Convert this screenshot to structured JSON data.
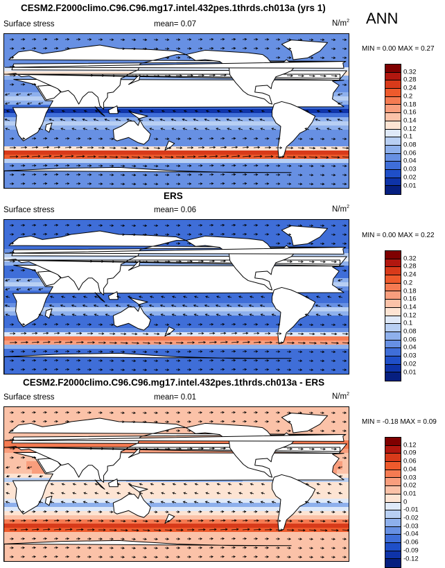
{
  "season": "ANN",
  "panels": [
    {
      "title": "CESM2.F2000climo.C96.C96.mg17.intel.432pes.1thrds.ch013a (yrs 1)",
      "variable": "Surface stress",
      "mean_label": "mean=",
      "mean_value": "0.07",
      "units": "N/m",
      "units_sup": "2",
      "min_label": "MIN =",
      "min_value": "0.00",
      "max_label": "MAX =",
      "max_value": "0.27",
      "colorbar_ticks": [
        "0.32",
        "0.28",
        "0.24",
        "0.2",
        "0.18",
        "0.16",
        "0.14",
        "0.12",
        "0.1",
        "0.08",
        "0.06",
        "0.04",
        "0.03",
        "0.02",
        "0.01"
      ],
      "colorbar_colors": [
        "#7f0000",
        "#b2170f",
        "#d83a1a",
        "#ee5a2c",
        "#f57b52",
        "#f99e7d",
        "#fbc2a8",
        "#fde4d3",
        "#dfe9f8",
        "#b8cff3",
        "#8eb0ec",
        "#6790e3",
        "#3f6ed8",
        "#1f4fc8",
        "#0e33a8",
        "#061f80"
      ],
      "map_style": "model"
    },
    {
      "title": "ERS",
      "variable": "Surface stress",
      "mean_label": "mean=",
      "mean_value": "0.06",
      "units": "N/m",
      "units_sup": "2",
      "min_label": "MIN =",
      "min_value": "0.00",
      "max_label": "MAX =",
      "max_value": "0.22",
      "colorbar_ticks": [
        "0.32",
        "0.28",
        "0.24",
        "0.2",
        "0.18",
        "0.16",
        "0.14",
        "0.12",
        "0.1",
        "0.08",
        "0.06",
        "0.04",
        "0.03",
        "0.02",
        "0.01"
      ],
      "colorbar_colors": [
        "#7f0000",
        "#b2170f",
        "#d83a1a",
        "#ee5a2c",
        "#f57b52",
        "#f99e7d",
        "#fbc2a8",
        "#fde4d3",
        "#dfe9f8",
        "#b8cff3",
        "#8eb0ec",
        "#6790e3",
        "#3f6ed8",
        "#1f4fc8",
        "#0e33a8",
        "#061f80"
      ],
      "map_style": "obs"
    },
    {
      "title": "CESM2.F2000climo.C96.C96.mg17.intel.432pes.1thrds.ch013a - ERS",
      "variable": "Surface stress",
      "mean_label": "mean=",
      "mean_value": "0.01",
      "units": "N/m",
      "units_sup": "2",
      "min_label": "MIN =",
      "min_value": "-0.18",
      "max_label": "MAX =",
      "max_value": "0.09",
      "colorbar_ticks": [
        "0.12",
        "0.09",
        "0.06",
        "0.04",
        "0.03",
        "0.02",
        "0.01",
        "0",
        "-0.01",
        "-0.02",
        "-0.03",
        "-0.04",
        "-0.06",
        "-0.09",
        "-0.12"
      ],
      "colorbar_colors": [
        "#7f0000",
        "#b2170f",
        "#d83a1a",
        "#ee5a2c",
        "#f57b52",
        "#f99e7d",
        "#fbc2a8",
        "#fde4d3",
        "#dfe9f8",
        "#b8cff3",
        "#8eb0ec",
        "#6790e3",
        "#3f6ed8",
        "#1f4fc8",
        "#0e33a8",
        "#061f80"
      ],
      "map_style": "diff"
    }
  ]
}
